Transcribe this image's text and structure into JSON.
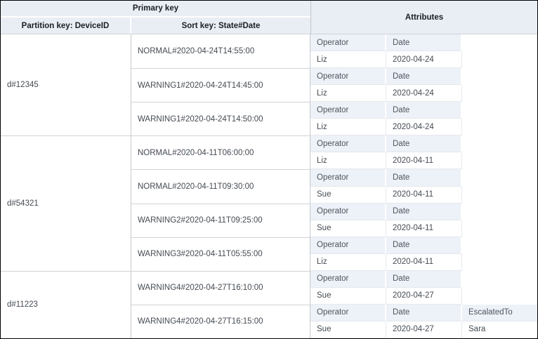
{
  "table": {
    "header": {
      "primary_key": "Primary key",
      "partition_key": "Partition key: DeviceID",
      "sort_key": "Sort key: State#Date",
      "attributes": "Attributes"
    },
    "groups": [
      {
        "device_id": "d#12345",
        "items": [
          {
            "sort_key": "NORMAL#2020-04-24T14:55:00",
            "attributes": [
              {
                "name": "Operator",
                "value": "Liz"
              },
              {
                "name": "Date",
                "value": "2020-04-24"
              }
            ]
          },
          {
            "sort_key": "WARNING1#2020-04-24T14:45:00",
            "attributes": [
              {
                "name": "Operator",
                "value": "Liz"
              },
              {
                "name": "Date",
                "value": "2020-04-24"
              }
            ]
          },
          {
            "sort_key": "WARNING1#2020-04-24T14:50:00",
            "attributes": [
              {
                "name": "Operator",
                "value": "Liz"
              },
              {
                "name": "Date",
                "value": "2020-04-24"
              }
            ]
          }
        ]
      },
      {
        "device_id": "d#54321",
        "items": [
          {
            "sort_key": "NORMAL#2020-04-11T06:00:00",
            "attributes": [
              {
                "name": "Operator",
                "value": "Liz"
              },
              {
                "name": "Date",
                "value": "2020-04-11"
              }
            ]
          },
          {
            "sort_key": "NORMAL#2020-04-11T09:30:00",
            "attributes": [
              {
                "name": "Operator",
                "value": "Sue"
              },
              {
                "name": "Date",
                "value": "2020-04-11"
              }
            ]
          },
          {
            "sort_key": "WARNING2#2020-04-11T09:25:00",
            "attributes": [
              {
                "name": "Operator",
                "value": "Sue"
              },
              {
                "name": "Date",
                "value": "2020-04-11"
              }
            ]
          },
          {
            "sort_key": "WARNING3#2020-04-11T05:55:00",
            "attributes": [
              {
                "name": "Operator",
                "value": "Liz"
              },
              {
                "name": "Date",
                "value": "2020-04-11"
              }
            ]
          }
        ]
      },
      {
        "device_id": "d#11223",
        "items": [
          {
            "sort_key": "WARNING4#2020-04-27T16:10:00",
            "attributes": [
              {
                "name": "Operator",
                "value": "Sue"
              },
              {
                "name": "Date",
                "value": "2020-04-27"
              }
            ]
          },
          {
            "sort_key": "WARNING4#2020-04-27T16:15:00",
            "attributes": [
              {
                "name": "Operator",
                "value": "Sue"
              },
              {
                "name": "Date",
                "value": "2020-04-27"
              },
              {
                "name": "EscalatedTo",
                "value": "Sara"
              }
            ]
          }
        ]
      }
    ]
  },
  "chart_data": {
    "type": "table",
    "title": "",
    "column_groups": [
      {
        "label": "Primary key",
        "spans": [
          "Partition key: DeviceID",
          "Sort key: State#Date"
        ]
      },
      {
        "label": "Attributes",
        "spans": [
          "Attributes"
        ]
      }
    ],
    "columns": [
      "Partition key: DeviceID",
      "Sort key: State#Date",
      "Attributes"
    ],
    "rows": [
      {
        "DeviceID": "d#12345",
        "State#Date": "NORMAL#2020-04-24T14:55:00",
        "attributes": {
          "Operator": "Liz",
          "Date": "2020-04-24"
        }
      },
      {
        "DeviceID": "d#12345",
        "State#Date": "WARNING1#2020-04-24T14:45:00",
        "attributes": {
          "Operator": "Liz",
          "Date": "2020-04-24"
        }
      },
      {
        "DeviceID": "d#12345",
        "State#Date": "WARNING1#2020-04-24T14:50:00",
        "attributes": {
          "Operator": "Liz",
          "Date": "2020-04-24"
        }
      },
      {
        "DeviceID": "d#54321",
        "State#Date": "NORMAL#2020-04-11T06:00:00",
        "attributes": {
          "Operator": "Liz",
          "Date": "2020-04-11"
        }
      },
      {
        "DeviceID": "d#54321",
        "State#Date": "NORMAL#2020-04-11T09:30:00",
        "attributes": {
          "Operator": "Sue",
          "Date": "2020-04-11"
        }
      },
      {
        "DeviceID": "d#54321",
        "State#Date": "WARNING2#2020-04-11T09:25:00",
        "attributes": {
          "Operator": "Sue",
          "Date": "2020-04-11"
        }
      },
      {
        "DeviceID": "d#54321",
        "State#Date": "WARNING3#2020-04-11T05:55:00",
        "attributes": {
          "Operator": "Liz",
          "Date": "2020-04-11"
        }
      },
      {
        "DeviceID": "d#11223",
        "State#Date": "WARNING4#2020-04-27T16:10:00",
        "attributes": {
          "Operator": "Sue",
          "Date": "2020-04-27"
        }
      },
      {
        "DeviceID": "d#11223",
        "State#Date": "WARNING4#2020-04-27T16:15:00",
        "attributes": {
          "Operator": "Sue",
          "Date": "2020-04-27",
          "EscalatedTo": "Sara"
        }
      }
    ]
  },
  "colors": {
    "header_bg": "#e9edf4",
    "attribute_header_bg": "#edf1f8",
    "grid_line": "#c6cacf",
    "row_divider": "#d2d2d2",
    "frame_border": "#000000",
    "text_dark": "#1b1f24",
    "text_body": "#454b52"
  }
}
